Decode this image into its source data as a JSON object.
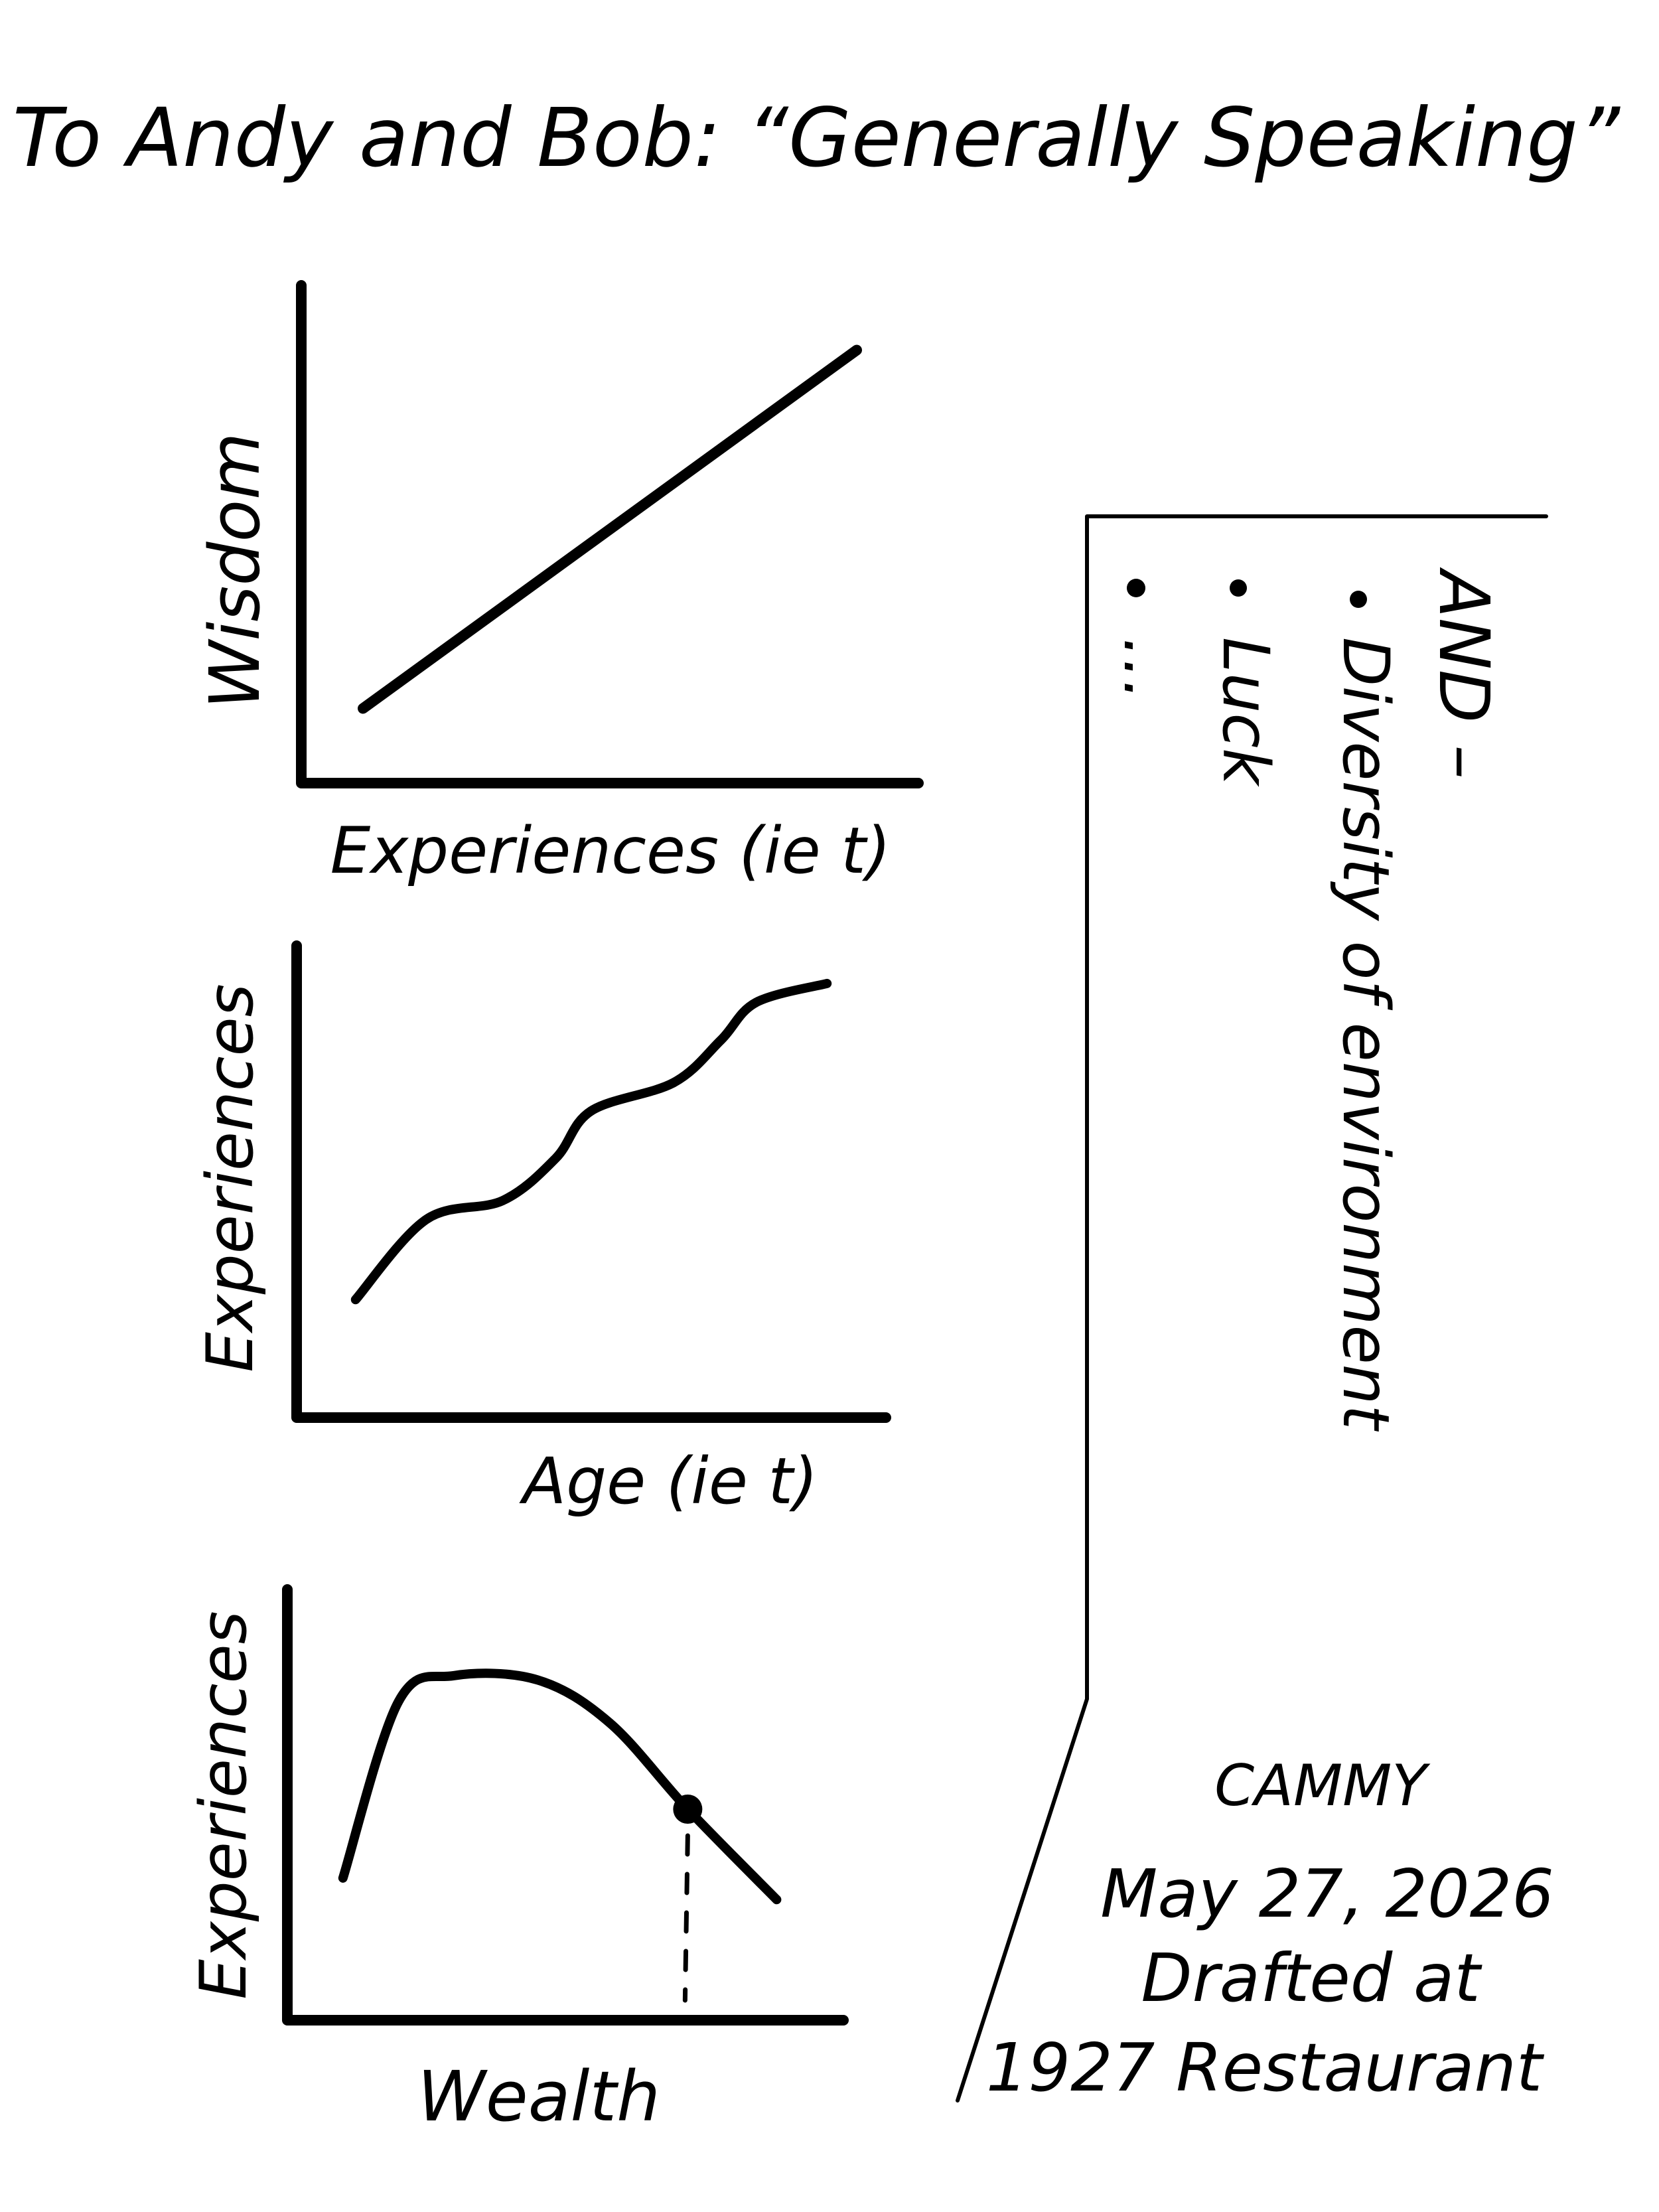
{
  "page": {
    "title": "To Andy and Bob: “Generally Speaking”"
  },
  "charts": [
    {
      "type": "line",
      "xlabel": "Experiences (ie t)",
      "ylabel": "Wisdom",
      "shape": "linear-increasing"
    },
    {
      "type": "line",
      "xlabel": "Age (ie t)",
      "ylabel": "Experiences",
      "shape": "stepped-increasing"
    },
    {
      "type": "line",
      "xlabel": "Wealth",
      "ylabel": "Experiences",
      "shape": "rise-then-fall",
      "marker": "dot-with-dashed-drop-line"
    }
  ],
  "chart_data": [
    {
      "type": "line",
      "title": "",
      "xlabel": "Experiences (ie t)",
      "ylabel": "Wisdom",
      "x": [
        0.1,
        0.9
      ],
      "y": [
        0.15,
        0.87
      ]
    },
    {
      "type": "line",
      "title": "",
      "xlabel": "Age (ie t)",
      "ylabel": "Experiences",
      "x": [
        0.1,
        0.22,
        0.35,
        0.44,
        0.5,
        0.64,
        0.72,
        0.78,
        0.9
      ],
      "y": [
        0.25,
        0.42,
        0.46,
        0.55,
        0.65,
        0.71,
        0.8,
        0.88,
        0.92
      ]
    },
    {
      "type": "line",
      "title": "",
      "xlabel": "Wealth",
      "ylabel": "Experiences",
      "x": [
        0.1,
        0.2,
        0.3,
        0.45,
        0.58,
        0.72,
        0.88
      ],
      "y": [
        0.33,
        0.74,
        0.8,
        0.79,
        0.69,
        0.49,
        0.28
      ],
      "marker": {
        "x": 0.72,
        "y": 0.49
      }
    }
  ],
  "sidebar": {
    "heading": "AND –",
    "items": [
      "Diversity of environment",
      "Luck",
      "…"
    ]
  },
  "signature": {
    "name": "CAMMY",
    "date": "May 27, 2026",
    "note_line1": "Drafted at",
    "note_line2": "1927 Restaurant"
  }
}
